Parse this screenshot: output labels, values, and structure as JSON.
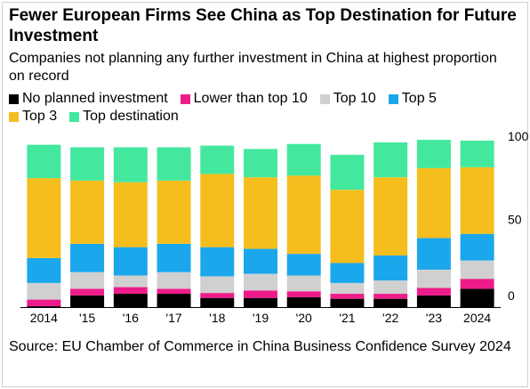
{
  "title": "Fewer European Firms See China as Top Destination for Future Investment",
  "subtitle": "Companies not planning any further investment in China at highest proportion on record",
  "source": "Source: EU Chamber of Commerce in China Business Confidence Survey 2024",
  "chart_data": {
    "type": "bar",
    "stacked": true,
    "categories": [
      "2014",
      "'15",
      "'16",
      "'17",
      "'18",
      "'19",
      "'20",
      "'21",
      "'22",
      "'23",
      "2024"
    ],
    "series": [
      {
        "name": "No planned investment",
        "color": "#000000",
        "values": [
          0.5,
          7,
          8,
          8,
          5.5,
          5.5,
          6,
          5,
          5,
          7,
          11
        ]
      },
      {
        "name": "Lower than top 10",
        "color": "#ee1c8a",
        "values": [
          4,
          4,
          4,
          3,
          3,
          4.5,
          3.5,
          3,
          3,
          4.5,
          6
        ]
      },
      {
        "name": "Top 10",
        "color": "#d0d0d0",
        "values": [
          10,
          10,
          7,
          10,
          10,
          10,
          9.5,
          6.5,
          8,
          11,
          11
        ]
      },
      {
        "name": "Top 5",
        "color": "#1aa7ec",
        "values": [
          15,
          17,
          17,
          17,
          17.5,
          15,
          13,
          12,
          15,
          19,
          16
        ]
      },
      {
        "name": "Top 3",
        "color": "#f5be1e",
        "values": [
          48,
          38,
          39,
          38,
          44,
          43,
          47,
          44,
          47,
          42,
          40
        ]
      },
      {
        "name": "Top destination",
        "color": "#43e89e",
        "values": [
          20,
          20,
          21,
          20,
          17,
          17,
          19,
          21,
          21,
          17,
          16
        ]
      }
    ],
    "ylim": [
      0,
      100
    ],
    "yticks": [
      "100",
      "50",
      "0"
    ],
    "ytick_values": [
      100,
      50,
      0
    ],
    "xlabel": "",
    "ylabel": "",
    "legend_position": "top",
    "grid": false
  }
}
